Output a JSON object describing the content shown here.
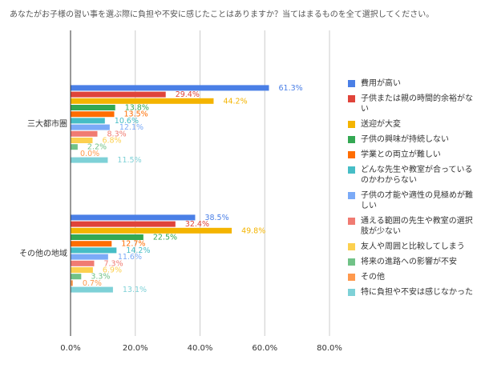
{
  "chart_data": {
    "type": "hbar",
    "title": "あなたがお子様の習い事を選ぶ際に負担や不安に感じたことはありますか？当てはまるものを全て選択してください。",
    "categories": [
      "三大都市圏",
      "その他の地域"
    ],
    "series": [
      {
        "name": "費用が高い",
        "color": "#4a7fe6",
        "values": [
          61.3,
          38.5
        ],
        "value_labels": [
          "61.3%",
          "38.5%"
        ]
      },
      {
        "name": "子供または親の時間的余裕がない",
        "color": "#e0443a",
        "values": [
          29.4,
          32.4
        ],
        "value_labels": [
          "29.4%",
          "32.4%"
        ]
      },
      {
        "name": "送迎が大変",
        "color": "#f4b400",
        "values": [
          44.2,
          49.8
        ],
        "value_labels": [
          "44.2%",
          "49.8%"
        ]
      },
      {
        "name": "子供の興味が持続しない",
        "color": "#34a853",
        "values": [
          13.8,
          22.5
        ],
        "value_labels": [
          "13.8%",
          "22.5%"
        ]
      },
      {
        "name": "学業との両立が難しい",
        "color": "#ff6d01",
        "values": [
          13.5,
          12.7
        ],
        "value_labels": [
          "13.5%",
          "12.7%"
        ]
      },
      {
        "name": "どんな先生や教室が合っているのかわからない",
        "color": "#46bdc6",
        "values": [
          10.6,
          14.2
        ],
        "value_labels": [
          "10.6%",
          "14.2%"
        ]
      },
      {
        "name": "子供の才能や適性の見極めが難しい",
        "color": "#7baaf7",
        "values": [
          12.1,
          11.6
        ],
        "value_labels": [
          "12.1%",
          "11.6%"
        ]
      },
      {
        "name": "通える範囲の先生や教室の選択肢が少ない",
        "color": "#f07b72",
        "values": [
          8.3,
          7.3
        ],
        "value_labels": [
          "8.3%",
          "7.3%"
        ]
      },
      {
        "name": "友人や周囲と比較してしまう",
        "color": "#fcd04f",
        "values": [
          6.8,
          6.9
        ],
        "value_labels": [
          "6.8%",
          "6.9%"
        ]
      },
      {
        "name": "将来の進路への影響が不安",
        "color": "#71c287",
        "values": [
          2.2,
          3.3
        ],
        "value_labels": [
          "2.2%",
          "3.3%"
        ]
      },
      {
        "name": "その他",
        "color": "#ff994d",
        "values": [
          0.0,
          0.7
        ],
        "value_labels": [
          "0.0%",
          "0.7%"
        ]
      },
      {
        "name": "特に負担や不安は感じなかった",
        "color": "#7ed1d7",
        "values": [
          11.5,
          13.1
        ],
        "value_labels": [
          "11.5%",
          "13.1%"
        ]
      }
    ],
    "xlim": [
      0,
      80
    ],
    "xticks": [
      {
        "value": 0,
        "label": "0.0%"
      },
      {
        "value": 20,
        "label": "20.0%"
      },
      {
        "value": 40,
        "label": "40.0%"
      },
      {
        "value": 60,
        "label": "60.0%"
      },
      {
        "value": 80,
        "label": "80.0%"
      }
    ],
    "grid": true,
    "legend": "right"
  }
}
